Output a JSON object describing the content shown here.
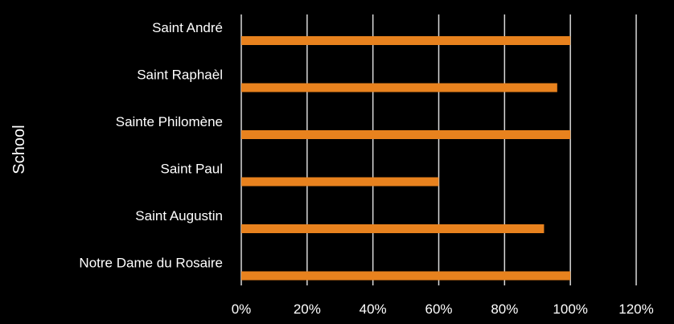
{
  "chart_data": {
    "type": "bar",
    "orientation": "horizontal",
    "title": "",
    "xlabel": "",
    "ylabel": "School",
    "categories": [
      "Saint André",
      "Saint Raphaèl",
      "Sainte Philomène",
      "Saint Paul",
      "Saint Augustin",
      "Notre Dame du Rosaire"
    ],
    "values": [
      1.0,
      0.96,
      1.0,
      0.6,
      0.92,
      1.0
    ],
    "xlim": [
      0,
      1.2
    ],
    "xticks": [
      0,
      0.2,
      0.4,
      0.6,
      0.8,
      1.0,
      1.2
    ],
    "xtick_labels": [
      "0%",
      "20%",
      "40%",
      "60%",
      "80%",
      "100%",
      "120%"
    ],
    "grid": "vertical",
    "legend": "none",
    "colors": {
      "background": "#000000",
      "bar": "#E8821E",
      "grid": "#d9d9d9",
      "text": "#ffffff"
    }
  }
}
